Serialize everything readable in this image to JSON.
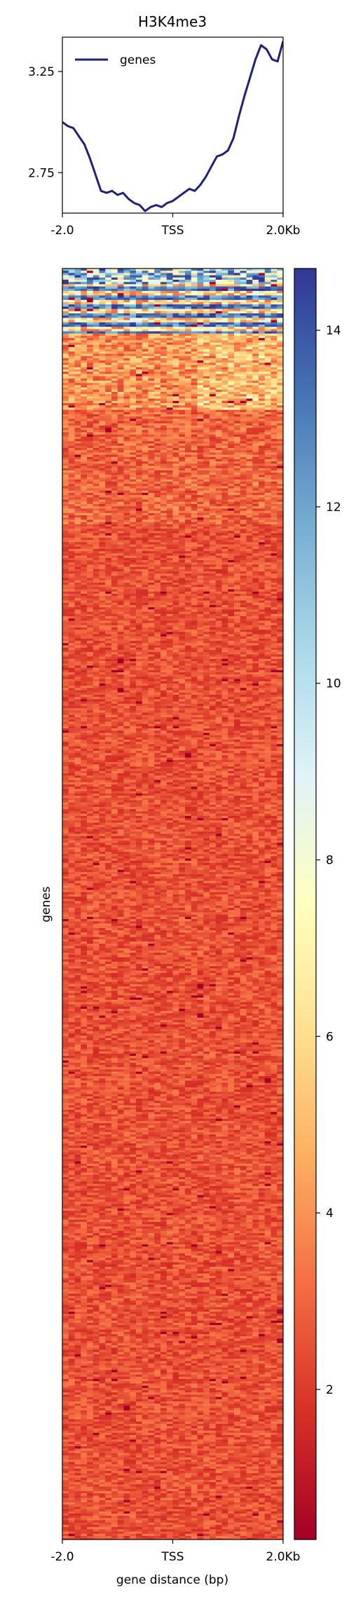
{
  "chart_data": [
    {
      "type": "line",
      "title": "H3K4me3",
      "xlabel": "",
      "ylabel": "",
      "x_tick_labels": [
        "-2.0",
        "TSS",
        "2.0Kb"
      ],
      "x_tick_positions": [
        -2000,
        0,
        2000
      ],
      "xlim": [
        -2000,
        2000
      ],
      "ylim": [
        2.55,
        3.42
      ],
      "y_ticks": [
        2.75,
        3.25
      ],
      "y_tick_labels": [
        "2.75",
        "3.25"
      ],
      "legend_position": "upper-left",
      "series": [
        {
          "name": "genes",
          "color": "#1f1f7f",
          "x": [
            -2000,
            -1900,
            -1800,
            -1700,
            -1600,
            -1500,
            -1400,
            -1300,
            -1200,
            -1100,
            -1000,
            -900,
            -800,
            -700,
            -600,
            -500,
            -400,
            -300,
            -200,
            -100,
            0,
            100,
            200,
            300,
            400,
            500,
            600,
            700,
            800,
            900,
            1000,
            1100,
            1200,
            1300,
            1400,
            1500,
            1600,
            1700,
            1800,
            1900,
            2000
          ],
          "values": [
            3.0,
            2.98,
            2.97,
            2.93,
            2.89,
            2.82,
            2.74,
            2.66,
            2.65,
            2.66,
            2.64,
            2.65,
            2.62,
            2.6,
            2.59,
            2.56,
            2.58,
            2.59,
            2.58,
            2.6,
            2.61,
            2.63,
            2.65,
            2.67,
            2.66,
            2.69,
            2.73,
            2.78,
            2.83,
            2.84,
            2.86,
            2.92,
            3.03,
            3.13,
            3.22,
            3.31,
            3.38,
            3.36,
            3.31,
            3.3,
            3.4
          ]
        }
      ]
    },
    {
      "type": "heatmap",
      "xlabel": "gene distance (bp)",
      "ylabel": "genes",
      "x_tick_labels": [
        "-2.0",
        "TSS",
        "2.0Kb"
      ],
      "x_tick_positions": [
        -2000,
        0,
        2000
      ],
      "colormap": "RdYlBu",
      "colormap_stops": [
        "#a50026",
        "#d73027",
        "#f46d43",
        "#fdae61",
        "#fee090",
        "#ffffbf",
        "#e0f3f8",
        "#abd9e9",
        "#74add1",
        "#4575b4",
        "#313695"
      ],
      "colorbar_range": [
        0.3,
        14.7
      ],
      "colorbar_ticks": [
        2,
        4,
        6,
        8,
        10,
        12,
        14
      ],
      "colorbar_tick_labels": [
        "2",
        "4",
        "6",
        "8",
        "10",
        "12",
        "14"
      ],
      "background_value": 2.0,
      "notes_rows_top": "top rows high signal (blue), remaining rows low signal (red)"
    }
  ]
}
